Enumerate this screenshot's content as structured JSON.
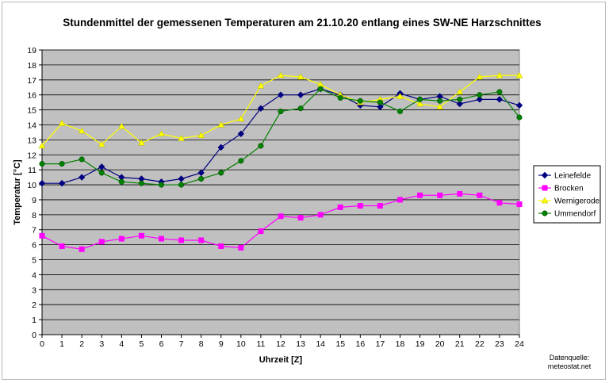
{
  "chart_data": {
    "type": "line",
    "title": "Stundenmittel der gemessenen Temperaturen am 21.10.20 entlang eines SW-NE Harzschnittes",
    "xlabel": "Uhrzeit [Z]",
    "ylabel": "Temperatur [°C]",
    "x": [
      0,
      1,
      2,
      3,
      4,
      5,
      6,
      7,
      8,
      9,
      10,
      11,
      12,
      13,
      14,
      15,
      16,
      17,
      18,
      19,
      20,
      21,
      22,
      23,
      24
    ],
    "xlim": [
      0,
      24
    ],
    "ylim": [
      0,
      19
    ],
    "yticks": [
      0,
      1,
      2,
      3,
      4,
      5,
      6,
      7,
      8,
      9,
      10,
      11,
      12,
      13,
      14,
      15,
      16,
      17,
      18,
      19
    ],
    "grid": true,
    "legend_position": "right",
    "background_color": "#c0c0c0",
    "series": [
      {
        "name": "Leinefelde",
        "color": "#000080",
        "marker": "diamond",
        "values": [
          10.1,
          10.1,
          10.5,
          11.2,
          10.5,
          10.4,
          10.2,
          10.4,
          10.8,
          12.5,
          13.4,
          15.1,
          16.0,
          16.0,
          16.4,
          16.0,
          15.3,
          15.2,
          16.1,
          15.7,
          15.9,
          15.4,
          15.7,
          15.7,
          15.3
        ]
      },
      {
        "name": "Brocken",
        "color": "#ff00ff",
        "marker": "square",
        "values": [
          6.6,
          5.9,
          5.7,
          6.2,
          6.4,
          6.6,
          6.4,
          6.3,
          6.3,
          5.9,
          5.8,
          6.9,
          7.9,
          7.8,
          8.0,
          8.5,
          8.6,
          8.6,
          9.0,
          9.3,
          9.3,
          9.4,
          9.3,
          8.8,
          8.7
        ]
      },
      {
        "name": "Wernigerode",
        "color": "#ffff00",
        "marker": "triangle",
        "values": [
          12.6,
          14.1,
          13.6,
          12.7,
          13.9,
          12.8,
          13.4,
          13.1,
          13.3,
          14.0,
          14.4,
          16.6,
          17.3,
          17.2,
          16.7,
          16.0,
          15.5,
          15.7,
          15.9,
          15.4,
          15.2,
          16.2,
          17.2,
          17.3,
          17.3
        ]
      },
      {
        "name": "Ummendorf",
        "color": "#008000",
        "marker": "circle",
        "values": [
          11.4,
          11.4,
          11.7,
          10.8,
          10.2,
          10.1,
          10.0,
          10.0,
          10.4,
          10.8,
          11.6,
          12.6,
          14.9,
          15.1,
          16.4,
          15.8,
          15.6,
          15.5,
          14.9,
          15.7,
          15.6,
          15.7,
          16.0,
          16.2,
          14.5
        ]
      }
    ],
    "source_label": "Datenquelle:",
    "source_value": "meteostat.net"
  }
}
